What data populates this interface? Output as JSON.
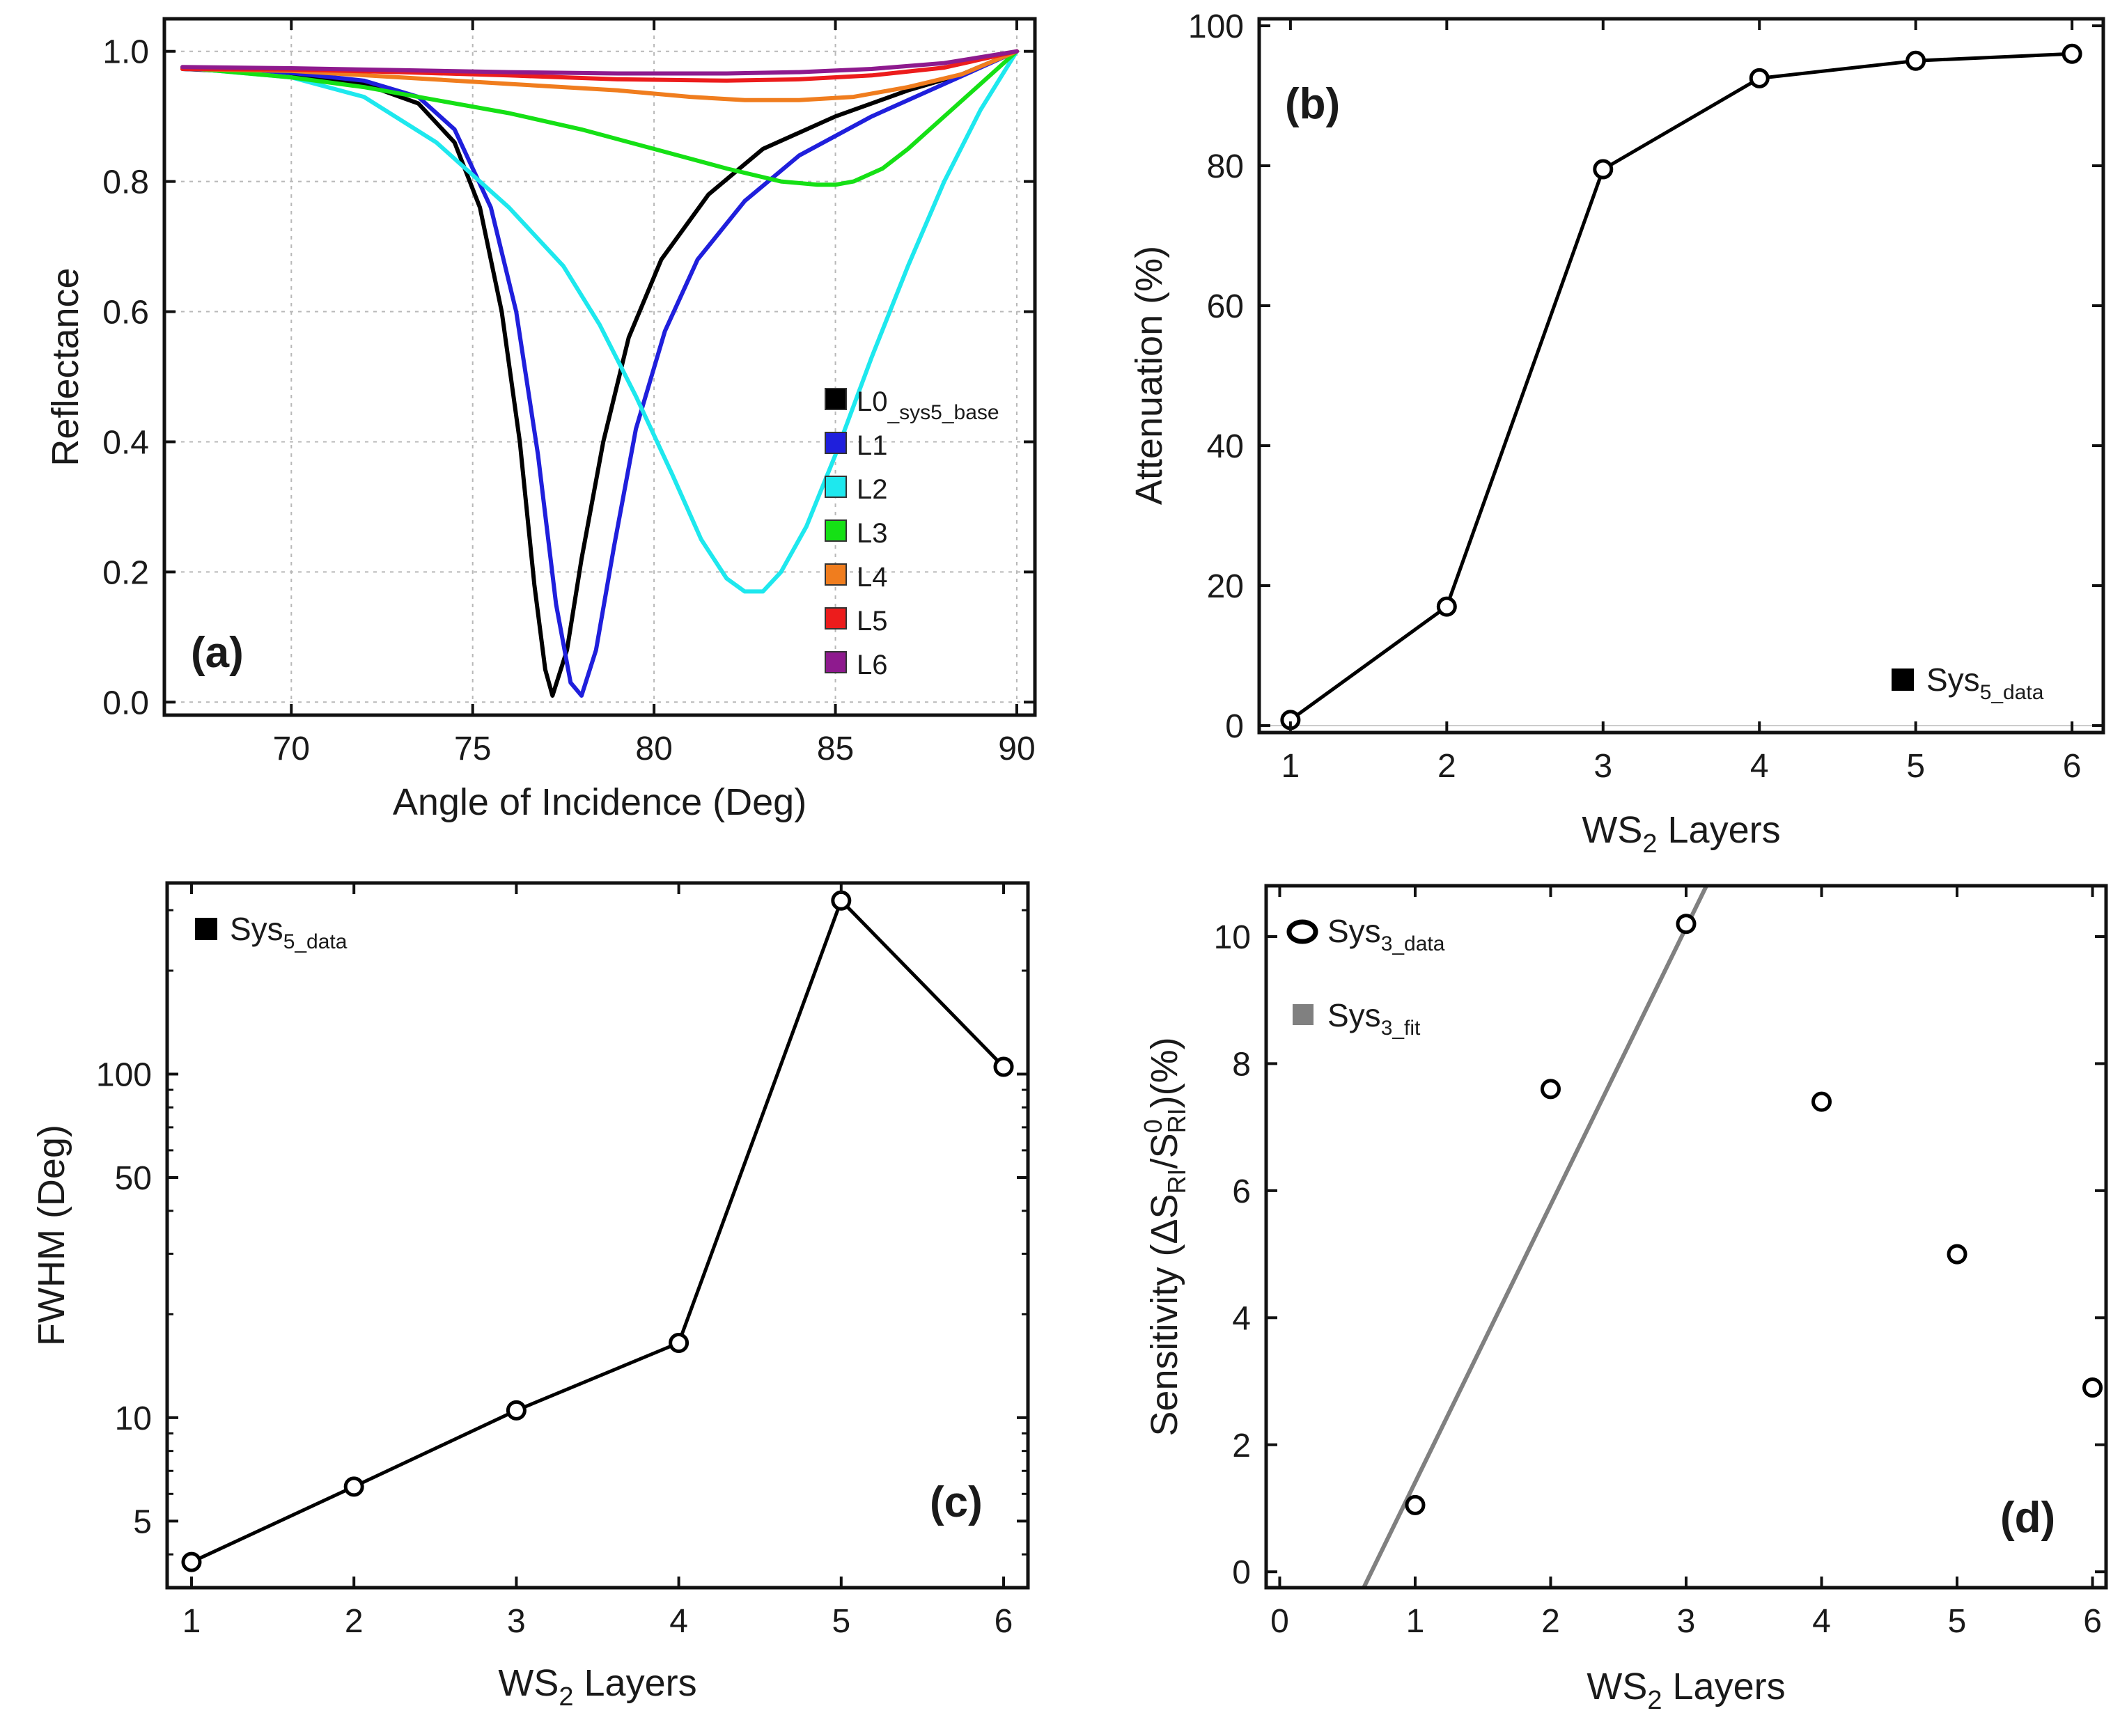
{
  "chart_data": [
    {
      "id": "a",
      "type": "line",
      "panel_label": "(a)",
      "xlabel": "Angle of Incidence (Deg)",
      "ylabel": "Reflectance",
      "xlim": [
        66.5,
        90.5
      ],
      "ylim": [
        -0.02,
        1.05
      ],
      "xticks": [
        70,
        75,
        80,
        85,
        90
      ],
      "xtick_labels": [
        "70",
        "75",
        "80",
        "85",
        "90"
      ],
      "yticks": [
        0.0,
        0.2,
        0.4,
        0.6,
        0.8,
        1.0
      ],
      "ytick_labels": [
        "0.0",
        "0.2",
        "0.4",
        "0.6",
        "0.8",
        "1.0"
      ],
      "grid": true,
      "legend_position": "bottom-right",
      "series": [
        {
          "name": "L0",
          "name_sub": "_sys5_base",
          "color": "#000000",
          "x": [
            67,
            70,
            72,
            73.5,
            74.5,
            75.2,
            75.8,
            76.3,
            76.7,
            77.0,
            77.2,
            77.6,
            78.0,
            78.6,
            79.3,
            80.2,
            81.5,
            83,
            85,
            87,
            88.5,
            90
          ],
          "y": [
            0.973,
            0.965,
            0.95,
            0.92,
            0.86,
            0.76,
            0.6,
            0.4,
            0.18,
            0.05,
            0.01,
            0.08,
            0.22,
            0.4,
            0.56,
            0.68,
            0.78,
            0.85,
            0.9,
            0.94,
            0.965,
            1.0
          ]
        },
        {
          "name": "L1",
          "color": "#1f1fdc",
          "x": [
            67,
            70,
            72,
            73.5,
            74.5,
            75.5,
            76.2,
            76.8,
            77.3,
            77.7,
            78.0,
            78.4,
            78.9,
            79.5,
            80.3,
            81.2,
            82.5,
            84,
            86,
            88,
            90
          ],
          "y": [
            0.973,
            0.967,
            0.955,
            0.93,
            0.88,
            0.76,
            0.6,
            0.38,
            0.15,
            0.03,
            0.01,
            0.08,
            0.24,
            0.42,
            0.57,
            0.68,
            0.77,
            0.84,
            0.9,
            0.95,
            1.0
          ]
        },
        {
          "name": "L2",
          "color": "#1ee8ee",
          "x": [
            67,
            70,
            72,
            74,
            76,
            77.5,
            78.5,
            79.5,
            80.5,
            81.3,
            82.0,
            82.5,
            83.0,
            83.5,
            84.2,
            85,
            86,
            87,
            88,
            89,
            90
          ],
          "y": [
            0.975,
            0.96,
            0.93,
            0.86,
            0.76,
            0.67,
            0.58,
            0.47,
            0.35,
            0.25,
            0.19,
            0.17,
            0.17,
            0.2,
            0.27,
            0.38,
            0.53,
            0.67,
            0.8,
            0.91,
            1.0
          ]
        },
        {
          "name": "L3",
          "color": "#15e015",
          "x": [
            67,
            70,
            72,
            74,
            76,
            78,
            80,
            82,
            83.5,
            84.5,
            85,
            85.5,
            86.3,
            87,
            88,
            89,
            90
          ],
          "y": [
            0.975,
            0.96,
            0.945,
            0.925,
            0.905,
            0.88,
            0.85,
            0.82,
            0.8,
            0.795,
            0.795,
            0.8,
            0.82,
            0.85,
            0.9,
            0.95,
            1.0
          ]
        },
        {
          "name": "L4",
          "color": "#f07d1e",
          "x": [
            67,
            70,
            73,
            76,
            79,
            81,
            82.5,
            84,
            85.5,
            87,
            88.5,
            90
          ],
          "y": [
            0.973,
            0.97,
            0.96,
            0.95,
            0.94,
            0.93,
            0.925,
            0.925,
            0.93,
            0.945,
            0.965,
            1.0
          ]
        },
        {
          "name": "L5",
          "color": "#ec1c1c",
          "x": [
            67,
            70,
            73,
            76,
            79,
            82,
            84,
            86,
            88,
            90
          ],
          "y": [
            0.973,
            0.972,
            0.968,
            0.963,
            0.957,
            0.955,
            0.957,
            0.963,
            0.975,
            1.0
          ]
        },
        {
          "name": "L6",
          "color": "#8e1a8e",
          "x": [
            67,
            70,
            73,
            76,
            79,
            82,
            84,
            86,
            88,
            90
          ],
          "y": [
            0.976,
            0.974,
            0.971,
            0.968,
            0.966,
            0.966,
            0.968,
            0.973,
            0.982,
            1.0
          ]
        }
      ]
    },
    {
      "id": "b",
      "type": "line",
      "panel_label": "(b)",
      "xlabel_main": "WS",
      "xlabel_sub": "2",
      "xlabel_tail": " Layers",
      "ylabel": "Attenuation (%)",
      "xlim": [
        0.8,
        6.2
      ],
      "ylim": [
        -1,
        101
      ],
      "xticks": [
        1,
        2,
        3,
        4,
        5,
        6
      ],
      "xtick_labels": [
        "1",
        "2",
        "3",
        "4",
        "5",
        "6"
      ],
      "yticks": [
        0,
        20,
        40,
        60,
        80,
        100
      ],
      "ytick_labels": [
        "0",
        "20",
        "40",
        "60",
        "80",
        "100"
      ],
      "legend_position": "bottom-right",
      "series": [
        {
          "name": "Sys",
          "name_sub": "5_data",
          "color": "#000000",
          "marker": "open-circle",
          "x": [
            1,
            2,
            3,
            4,
            5,
            6
          ],
          "y": [
            0.8,
            17,
            79.5,
            92.5,
            95,
            96
          ]
        }
      ]
    },
    {
      "id": "c",
      "type": "line",
      "panel_label": "(c)",
      "xlabel_main": "WS",
      "xlabel_sub": "2",
      "xlabel_tail": " Layers",
      "ylabel": "FWHM (Deg)",
      "yscale": "log",
      "xlim": [
        0.85,
        6.15
      ],
      "ylim": [
        3.2,
        360
      ],
      "xticks": [
        1,
        2,
        3,
        4,
        5,
        6
      ],
      "xtick_labels": [
        "1",
        "2",
        "3",
        "4",
        "5",
        "6"
      ],
      "yticks": [
        5,
        10,
        50,
        100
      ],
      "ytick_labels": [
        "5",
        "10",
        "50",
        "100"
      ],
      "legend_position": "top-left",
      "series": [
        {
          "name": "Sys",
          "name_sub": "5_data",
          "color": "#000000",
          "marker": "open-circle",
          "x": [
            1,
            2,
            3,
            4,
            5,
            6
          ],
          "y": [
            3.8,
            6.3,
            10.5,
            16.5,
            320,
            105
          ]
        }
      ]
    },
    {
      "id": "d",
      "type": "scatter",
      "panel_label": "(d)",
      "xlabel_main": "WS",
      "xlabel_sub": "2",
      "xlabel_tail": " Layers",
      "ylabel": "Sensitivity (ΔS_RI/S_RI^0)(%)",
      "xlim": [
        -0.1,
        6.1
      ],
      "ylim": [
        -0.25,
        10.8
      ],
      "xticks": [
        0,
        1,
        2,
        3,
        4,
        5,
        6
      ],
      "xtick_labels": [
        "0",
        "1",
        "2",
        "3",
        "4",
        "5",
        "6"
      ],
      "yticks": [
        0,
        2,
        4,
        6,
        8,
        10
      ],
      "ytick_labels": [
        "0",
        "2",
        "4",
        "6",
        "8",
        "10"
      ],
      "legend_position": "top-left",
      "series": [
        {
          "name": "Sys",
          "name_sub": "3_data",
          "color": "#000000",
          "marker": "open-circle",
          "x": [
            1,
            2,
            3,
            4,
            5,
            6
          ],
          "y": [
            1.05,
            7.6,
            10.2,
            7.4,
            5.0,
            2.9
          ]
        },
        {
          "name": "Sys",
          "name_sub": "3_fit",
          "color": "#808080",
          "marker": "line",
          "x": [
            0.62,
            3.15
          ],
          "y": [
            -0.25,
            10.8
          ]
        }
      ]
    }
  ],
  "labels": {
    "d_ylabel_prefix": "Sensitivity (ΔS",
    "d_ylabel_sub1": "RI",
    "d_ylabel_mid": "/S",
    "d_ylabel_sup": "0",
    "d_ylabel_sub2": "RI",
    "d_ylabel_suffix": ")(%)"
  }
}
